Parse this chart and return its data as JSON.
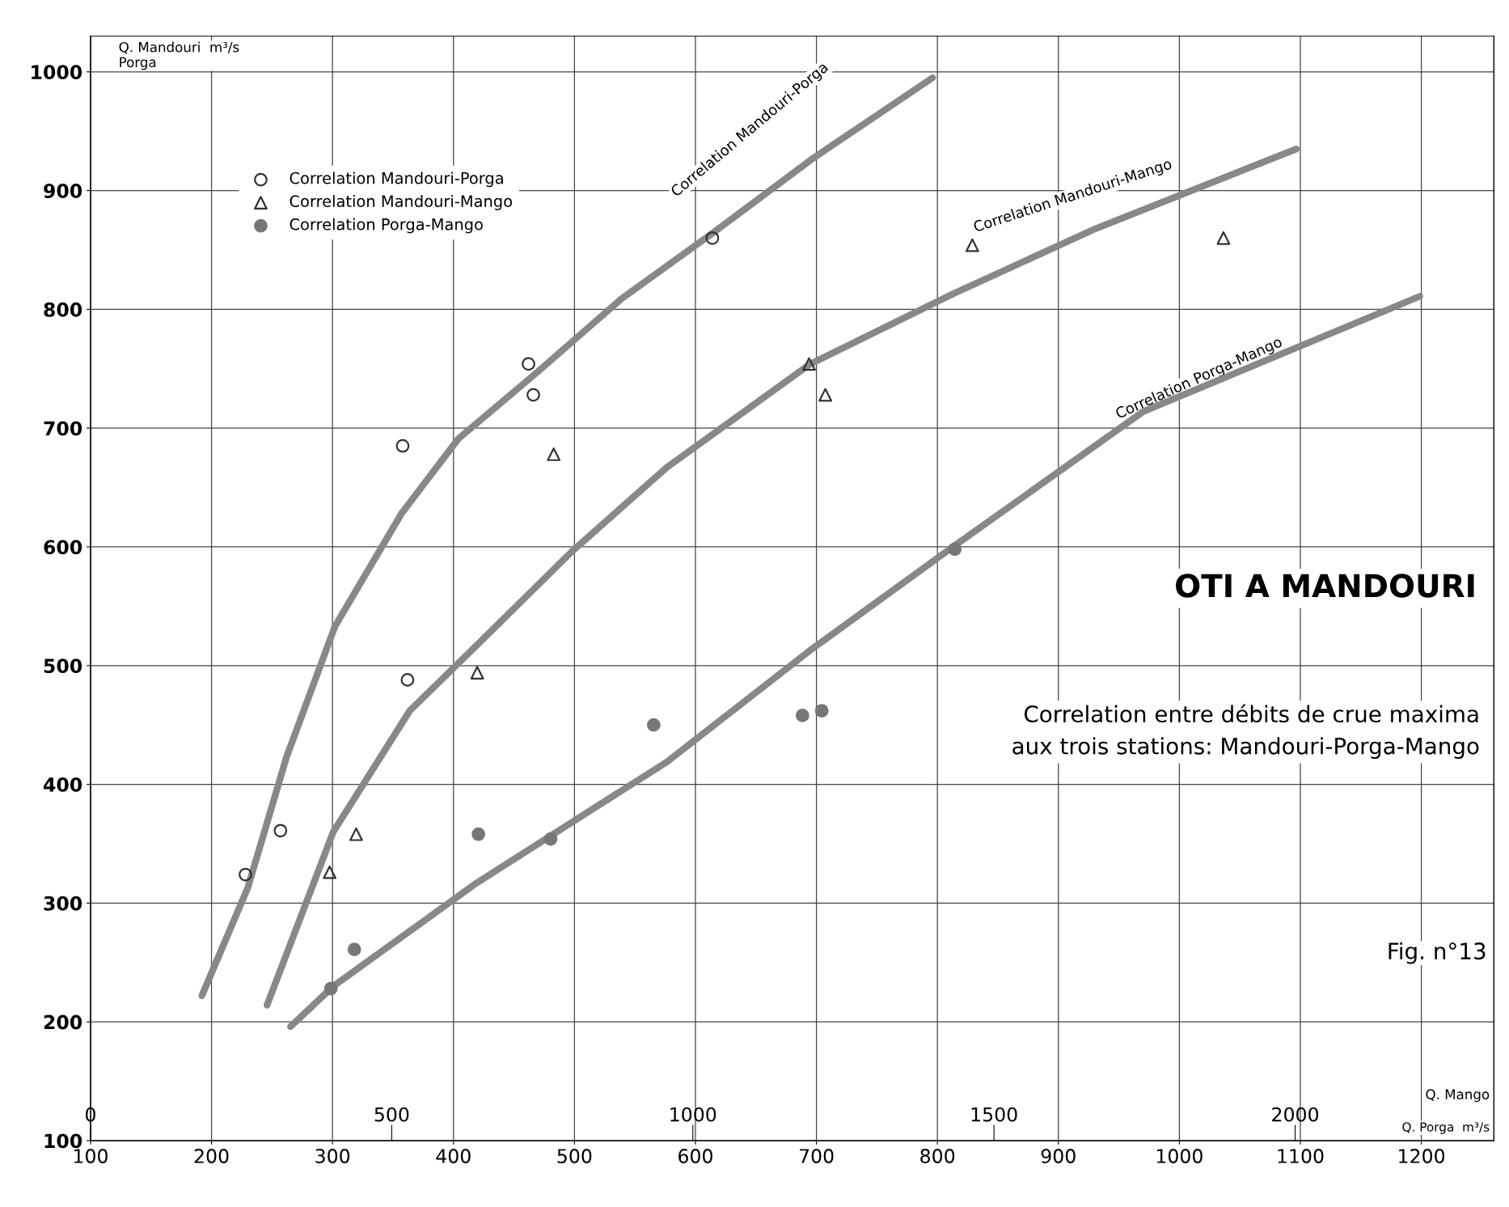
{
  "chart_data": {
    "type": "scatter",
    "title": "OTI A MANDOURI",
    "subtitle": "Correlation entre débits de crue maxima\naux trois stations: Mandouri-Porga-Mango",
    "ylabel": "Q. Mandouri  m³/s\nPorga",
    "xlabel": "Q. Porga  m³/s",
    "x2label": "Q. Mango",
    "xlim": [
      100,
      1260
    ],
    "xticks": [
      100,
      200,
      300,
      400,
      500,
      600,
      700,
      800,
      900,
      1000,
      1100,
      1200
    ],
    "x2lim": [
      0,
      2330
    ],
    "x2ticks": [
      0,
      500,
      1000,
      1500,
      2000
    ],
    "ylim": [
      100,
      1030
    ],
    "yticks": [
      100,
      200,
      300,
      400,
      500,
      600,
      700,
      800,
      900,
      1000
    ],
    "grid": true,
    "legend": "top left",
    "series": [
      {
        "name": "Correlation Mandouri-Porga",
        "marker": "circle",
        "color": "#333333",
        "x": [
          228,
          257,
          358,
          362,
          462,
          466,
          614
        ],
        "values": [
          324,
          361,
          685,
          488,
          754,
          728,
          860
        ]
      },
      {
        "name": "Correlation Mandouri-Mango",
        "marker": "triangle",
        "axis": "x2",
        "color": "#333333",
        "x": [
          397,
          441,
          642,
          769,
          1193,
          1220,
          1464,
          1881
        ],
        "values": [
          326,
          358,
          494,
          678,
          754,
          728,
          854,
          860
        ]
      },
      {
        "name": "Correlation Porga-Mango",
        "marker": "circle",
        "axis": "x2",
        "color": "#777777",
        "x": [
          399,
          438,
          644,
          764,
          935,
          1182,
          1214,
          1435
        ],
        "values": [
          228,
          261,
          358,
          354,
          450,
          458,
          462,
          598
        ]
      },
      {
        "type": "line",
        "color": "#888888",
        "x": [
          192,
          230,
          262,
          302,
          357,
          404,
          468,
          539,
          614,
          697,
          796
        ],
        "values": [
          222,
          313,
          423,
          533,
          628,
          691,
          746,
          809,
          864,
          927,
          995
        ]
      },
      {
        "type": "line",
        "axis": "x2",
        "color": "#888888",
        "x": [
          293,
          403,
          530,
          641,
          799,
          957,
          1195,
          1432,
          1669,
          2002
        ],
        "values": [
          214,
          360,
          462,
          517,
          596,
          667,
          754,
          813,
          868,
          935
        ]
      },
      {
        "type": "line",
        "axis": "x2",
        "color": "#888888",
        "x": [
          332,
          403,
          641,
          957,
          1195,
          1432,
          1748,
          2207
        ],
        "values": [
          196,
          230,
          317,
          419,
          513,
          600,
          714,
          811
        ]
      }
    ],
    "annotations": [
      "Correlation Mandouri-Porga",
      "Correlation Mandouri-Mango",
      "Correlation Porga-Mango",
      "Fig. n°13"
    ]
  }
}
